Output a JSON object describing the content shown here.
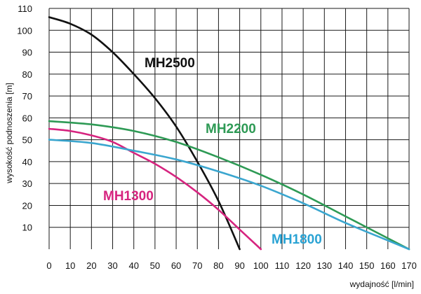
{
  "chart_data": {
    "type": "line",
    "xlabel": "wydajność [l/min]",
    "ylabel": "wysokość podnoszenia [m]",
    "xlim": [
      0,
      170
    ],
    "ylim": [
      0,
      110
    ],
    "xticks": [
      0,
      10,
      20,
      30,
      40,
      50,
      60,
      70,
      80,
      90,
      100,
      110,
      120,
      130,
      140,
      150,
      160,
      170
    ],
    "yticks": [
      10,
      20,
      30,
      40,
      50,
      60,
      70,
      80,
      90,
      100,
      110
    ],
    "grid": true,
    "legend": "inline labels",
    "series": [
      {
        "name": "MH2500",
        "color": "#111111",
        "label_color": "#111111",
        "points": [
          [
            0,
            106
          ],
          [
            10,
            103
          ],
          [
            20,
            98
          ],
          [
            30,
            90
          ],
          [
            40,
            80
          ],
          [
            50,
            69
          ],
          [
            60,
            56
          ],
          [
            70,
            40
          ],
          [
            80,
            22
          ],
          [
            90,
            0
          ]
        ]
      },
      {
        "name": "MH2200",
        "color": "#2e9a55",
        "label_color": "#2e9a55",
        "points": [
          [
            0,
            58.5
          ],
          [
            20,
            57
          ],
          [
            40,
            54
          ],
          [
            60,
            49
          ],
          [
            80,
            42
          ],
          [
            100,
            34
          ],
          [
            120,
            25
          ],
          [
            140,
            15
          ],
          [
            160,
            5
          ],
          [
            170,
            0
          ]
        ]
      },
      {
        "name": "MH1300",
        "color": "#d6247f",
        "label_color": "#d6247f",
        "points": [
          [
            0,
            55
          ],
          [
            10,
            54
          ],
          [
            20,
            52
          ],
          [
            30,
            49
          ],
          [
            40,
            44
          ],
          [
            50,
            39
          ],
          [
            60,
            33
          ],
          [
            70,
            26
          ],
          [
            80,
            18
          ],
          [
            90,
            9
          ],
          [
            100,
            0
          ]
        ]
      },
      {
        "name": "MH1800",
        "color": "#3aa6cf",
        "label_color": "#2aa3d4",
        "points": [
          [
            0,
            50
          ],
          [
            20,
            48.5
          ],
          [
            40,
            45
          ],
          [
            60,
            41
          ],
          [
            80,
            35.5
          ],
          [
            100,
            29
          ],
          [
            120,
            21
          ],
          [
            140,
            12
          ],
          [
            160,
            4
          ],
          [
            170,
            0
          ]
        ]
      }
    ]
  }
}
